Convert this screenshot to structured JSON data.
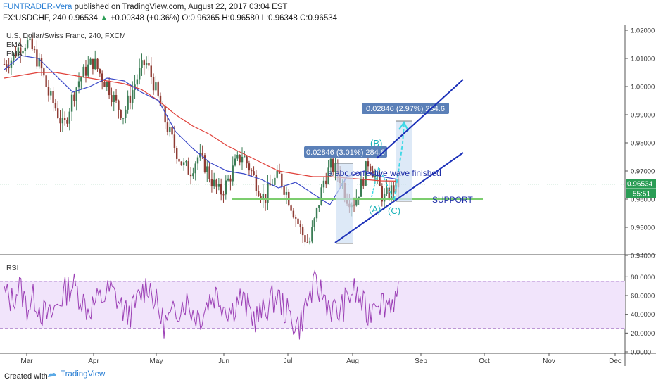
{
  "header": {
    "author": "FUNTRADER-Vera",
    "published": " published on TradingView.com, August 22, 2017 03:04 EST",
    "symbol": "FX:USDCHF, 240",
    "last": "0.96534",
    "change_arrow": "▲",
    "change": "+0.00348 (+0.36%)",
    "o": "O:0.96365",
    "h": "H:0.96580",
    "l": "L:0.96348",
    "c": "C:0.96534"
  },
  "legend": {
    "title": "U.S. Dollar/Swiss Franc, 240, FXCM",
    "ema1": "EMA",
    "ema2": "EMA"
  },
  "price_axis": {
    "ticks": [
      "1.02000",
      "1.01000",
      "1.00000",
      "0.99000",
      "0.98000",
      "0.97000",
      "0.96000",
      "0.95000",
      "0.94000"
    ],
    "last_price": "0.96534",
    "countdown": "55:51"
  },
  "rsi_axis": {
    "label": "RSI",
    "ticks": [
      "80.0000",
      "60.0000",
      "40.0000",
      "20.0000",
      "0.0000"
    ]
  },
  "time_axis": {
    "labels": [
      "Mar",
      "Apr",
      "May",
      "Jun",
      "Jul",
      "Aug",
      "Sep",
      "Oct",
      "Nov",
      "Dec"
    ]
  },
  "annotations": {
    "measure1": "0.02846 (3.01%) 284.6",
    "measure2": "0.02846 (2.97%) 284.6",
    "wave_text": "a abc corrective wave finished",
    "wave_a": "(A)",
    "wave_b": "(B)",
    "wave_c": "(C)",
    "support": "SUPPORT"
  },
  "footer": {
    "created": "Created with",
    "brand": "TradingView"
  },
  "colors": {
    "candle_up": "#3b7d55",
    "candle_down": "#8e3b33",
    "ema_red": "#e0413a",
    "ema_blue": "#3a48c8",
    "channel": "#1a2fb8",
    "support": "#7ccd6e",
    "rsi": "#9b3fb5",
    "rsi_band": "#f1e4fb",
    "label_box": "#5b80b8"
  },
  "chart_data": {
    "type": "candlestick",
    "title": "U.S. Dollar/Swiss Franc, 240, FXCM",
    "ylim": [
      0.94,
      1.0215
    ],
    "x": [
      "Mar",
      "Apr",
      "May",
      "Jun",
      "Jul",
      "Aug",
      "Sep",
      "Oct",
      "Nov",
      "Dec"
    ],
    "price_path": [
      1.008,
      1.01,
      1.014,
      1.016,
      1.012,
      1.006,
      0.997,
      0.992,
      0.985,
      0.995,
      1.002,
      1.006,
      1.009,
      1.004,
      1.0,
      0.994,
      0.99,
      0.997,
      1.004,
      1.009,
      1.002,
      0.993,
      0.985,
      0.978,
      0.972,
      0.97,
      0.975,
      0.972,
      0.966,
      0.962,
      0.966,
      0.972,
      0.976,
      0.971,
      0.965,
      0.96,
      0.966,
      0.968,
      0.962,
      0.955,
      0.948,
      0.944,
      0.955,
      0.967,
      0.972,
      0.969,
      0.961,
      0.959,
      0.965,
      0.974,
      0.967,
      0.96,
      0.963,
      0.9653
    ],
    "ema_red_path": [
      1.003,
      1.004,
      1.005,
      1.005,
      1.004,
      1.003,
      1.002,
      1.001,
      0.999,
      0.995,
      0.99,
      0.986,
      0.983,
      0.979,
      0.976,
      0.973,
      0.97,
      0.969,
      0.968,
      0.968,
      0.9675,
      0.967,
      0.9665,
      0.9664
    ],
    "ema_blue_path": [
      1.006,
      1.011,
      1.01,
      1.004,
      0.998,
      1.0,
      1.003,
      1.002,
      0.998,
      0.995,
      0.984,
      0.978,
      0.973,
      0.97,
      0.969,
      0.967,
      0.964,
      0.966,
      0.962,
      0.958,
      0.968,
      0.97,
      0.968,
      0.967
    ],
    "rsi_values": [
      62,
      55,
      70,
      48,
      58,
      42,
      36,
      50,
      64,
      72,
      60,
      45,
      52,
      58,
      66,
      55,
      40,
      44,
      61,
      74,
      52,
      30,
      35,
      48,
      55,
      41,
      38,
      56,
      62,
      50,
      44,
      58,
      48,
      36,
      40,
      52,
      60,
      45,
      33,
      28,
      54,
      70,
      62,
      48,
      40,
      52,
      66,
      55,
      38,
      60,
      52,
      55,
      58
    ],
    "rsi_ylim": [
      0,
      100
    ],
    "rsi_bands": [
      25,
      75
    ],
    "channel_lower": [
      [
        0.9445,
        "Jul 22"
      ],
      [
        0.9765,
        "Sep 25"
      ]
    ],
    "channel_upper": [
      [
        0.9745,
        "Aug 1"
      ],
      [
        1.0025,
        "Sep 25"
      ]
    ],
    "support_level": 0.96,
    "last_price": 0.96534
  }
}
